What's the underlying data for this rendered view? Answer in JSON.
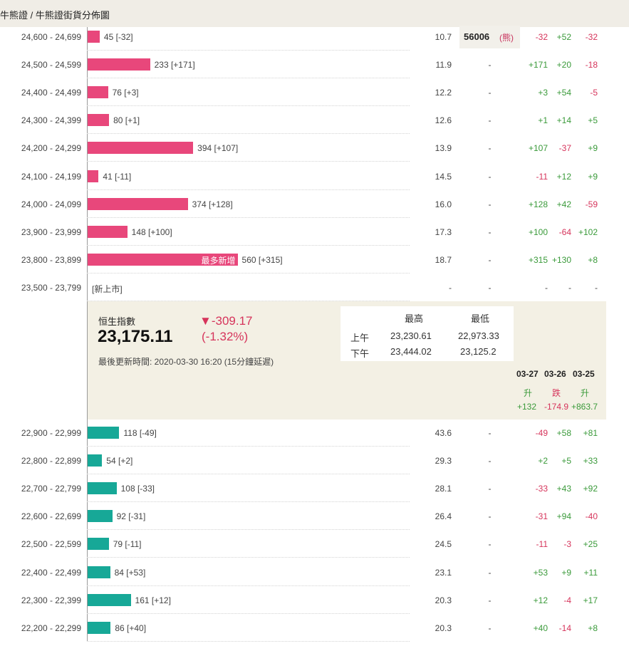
{
  "breadcrumb": "牛熊證 / 牛熊證街貨分佈圖",
  "colors": {
    "bull": "#e8477b",
    "bear": "#17a897",
    "up": "#3a9a3a",
    "down": "#d6345b",
    "panel": "#f3f0e4"
  },
  "bull_rows": [
    {
      "range": "24,600 - 24,699",
      "count": "45 [-32]",
      "leverage": "10.7",
      "code": "56006",
      "code_tag": "(熊)",
      "d1": "-32",
      "d2": "+52",
      "d3": "-32",
      "value": 45
    },
    {
      "range": "24,500 - 24,599",
      "count": "233 [+171]",
      "leverage": "11.9",
      "code": "-",
      "d1": "+171",
      "d2": "+20",
      "d3": "-18",
      "value": 233
    },
    {
      "range": "24,400 - 24,499",
      "count": "76 [+3]",
      "leverage": "12.2",
      "code": "-",
      "d1": "+3",
      "d2": "+54",
      "d3": "-5",
      "value": 76
    },
    {
      "range": "24,300 - 24,399",
      "count": "80 [+1]",
      "leverage": "12.6",
      "code": "-",
      "d1": "+1",
      "d2": "+14",
      "d3": "+5",
      "value": 80
    },
    {
      "range": "24,200 - 24,299",
      "count": "394 [+107]",
      "leverage": "13.9",
      "code": "-",
      "d1": "+107",
      "d2": "-37",
      "d3": "+9",
      "value": 394
    },
    {
      "range": "24,100 - 24,199",
      "count": "41 [-11]",
      "leverage": "14.5",
      "code": "-",
      "d1": "-11",
      "d2": "+12",
      "d3": "+9",
      "value": 41
    },
    {
      "range": "24,000 - 24,099",
      "count": "374 [+128]",
      "leverage": "16.0",
      "code": "-",
      "d1": "+128",
      "d2": "+42",
      "d3": "-59",
      "value": 374
    },
    {
      "range": "23,900 - 23,999",
      "count": "148 [+100]",
      "leverage": "17.3",
      "code": "-",
      "d1": "+100",
      "d2": "-64",
      "d3": "+102",
      "value": 148
    },
    {
      "range": "23,800 - 23,899",
      "count": "560 [+315]",
      "leverage": "18.7",
      "code": "-",
      "d1": "+315",
      "d2": "+130",
      "d3": "+8",
      "value": 560,
      "tag": "最多新增"
    },
    {
      "range": "23,500 - 23,799",
      "count": "",
      "newlisting": "[新上市]",
      "leverage": "-",
      "code": "-",
      "d1": "-",
      "d2": "-",
      "d3": "-",
      "value": 0
    }
  ],
  "index": {
    "name": "恒生指數",
    "value": "23,175.11",
    "change": "▼-309.17",
    "change_pct": "(-1.32%)",
    "updated": "最後更新時間: 2020-03-30 16:20 (15分鐘延遲)",
    "hl_headers": [
      "最高",
      "最低"
    ],
    "sessions": [
      {
        "label": "上午",
        "high": "23,230.61",
        "low": "22,973.33"
      },
      {
        "label": "下午",
        "high": "23,444.02",
        "low": "23,125.2"
      }
    ],
    "days": [
      {
        "date": "03-27",
        "dir": "升",
        "value": "+132",
        "sign": "up"
      },
      {
        "date": "03-26",
        "dir": "跌",
        "value": "-174.9",
        "sign": "down"
      },
      {
        "date": "03-25",
        "dir": "升",
        "value": "+863.7",
        "sign": "up"
      }
    ]
  },
  "bear_rows": [
    {
      "range": "22,900 - 22,999",
      "count": "118 [-49]",
      "leverage": "43.6",
      "code": "-",
      "d1": "-49",
      "d2": "+58",
      "d3": "+81",
      "value": 118
    },
    {
      "range": "22,800 - 22,899",
      "count": "54 [+2]",
      "leverage": "29.3",
      "code": "-",
      "d1": "+2",
      "d2": "+5",
      "d3": "+33",
      "value": 54
    },
    {
      "range": "22,700 - 22,799",
      "count": "108 [-33]",
      "leverage": "28.1",
      "code": "-",
      "d1": "-33",
      "d2": "+43",
      "d3": "+92",
      "value": 108
    },
    {
      "range": "22,600 - 22,699",
      "count": "92 [-31]",
      "leverage": "26.4",
      "code": "-",
      "d1": "-31",
      "d2": "+94",
      "d3": "-40",
      "value": 92
    },
    {
      "range": "22,500 - 22,599",
      "count": "79 [-11]",
      "leverage": "24.5",
      "code": "-",
      "d1": "-11",
      "d2": "-3",
      "d3": "+25",
      "value": 79
    },
    {
      "range": "22,400 - 22,499",
      "count": "84 [+53]",
      "leverage": "23.1",
      "code": "-",
      "d1": "+53",
      "d2": "+9",
      "d3": "+11",
      "value": 84
    },
    {
      "range": "22,300 - 22,399",
      "count": "161 [+12]",
      "leverage": "20.3",
      "code": "-",
      "d1": "+12",
      "d2": "-4",
      "d3": "+17",
      "value": 161
    },
    {
      "range": "22,200 - 22,299",
      "count": "86 [+40]",
      "leverage": "20.3",
      "code": "-",
      "d1": "+40",
      "d2": "-14",
      "d3": "+8",
      "value": 86
    }
  ]
}
